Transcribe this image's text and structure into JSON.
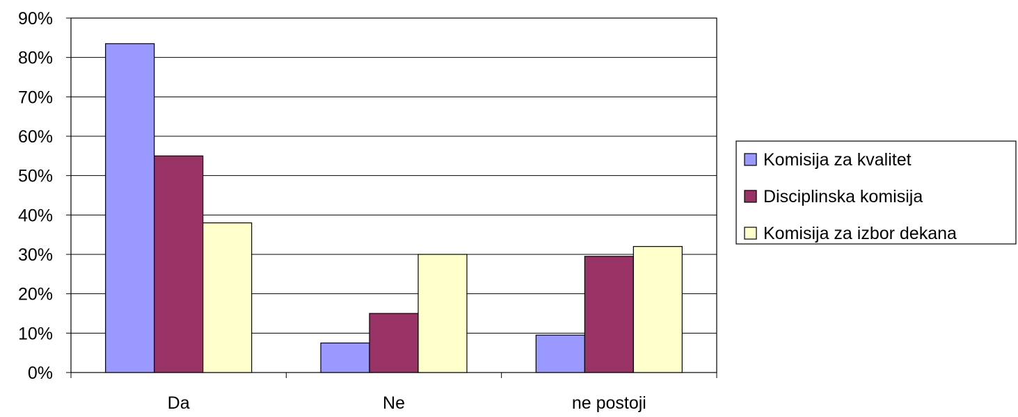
{
  "chart_data": {
    "type": "bar",
    "categories": [
      "Da",
      "Ne",
      "ne postoji"
    ],
    "series": [
      {
        "name": "Komisija za kvalitet",
        "values": [
          83.5,
          7.5,
          9.5
        ],
        "color": "#9999ff"
      },
      {
        "name": "Disciplinska komisija",
        "values": [
          55,
          15,
          29.5
        ],
        "color": "#993366"
      },
      {
        "name": "Komisija za izbor dekana",
        "values": [
          38,
          30,
          32
        ],
        "color": "#ffffcc"
      }
    ],
    "ylim": [
      0,
      90
    ],
    "y_ticks": [
      "0%",
      "10%",
      "20%",
      "30%",
      "40%",
      "50%",
      "60%",
      "70%",
      "80%",
      "90%"
    ],
    "y_tick_values": [
      0,
      10,
      20,
      30,
      40,
      50,
      60,
      70,
      80,
      90
    ],
    "grid": true,
    "legend_position": "right",
    "title": "",
    "xlabel": "",
    "ylabel": ""
  }
}
